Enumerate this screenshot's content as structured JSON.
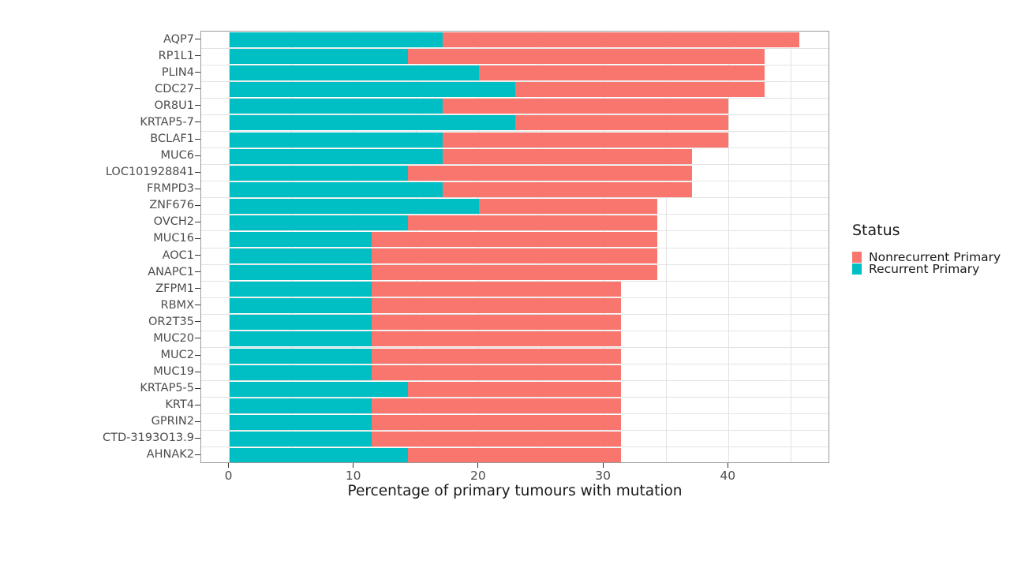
{
  "figure": {
    "background": "#FFFFFF"
  },
  "chart_data": {
    "type": "bar",
    "orientation": "horizontal",
    "stacked": true,
    "title": "",
    "xlabel": "Percentage of primary tumours with mutation",
    "ylabel": "",
    "xlim": [
      -2.3,
      48.1
    ],
    "x_ticks": [
      0,
      10,
      20,
      30,
      40
    ],
    "x_gridlines": [
      0,
      5,
      10,
      15,
      20,
      25,
      30,
      35,
      40,
      45
    ],
    "grid": "on",
    "legend_position": "right",
    "legend_title": "Status",
    "series": [
      {
        "name": "Recurrent Primary",
        "color": "#00BFC4"
      },
      {
        "name": "Nonrecurrent Primary",
        "color": "#F8766D"
      }
    ],
    "rows": [
      {
        "gene": "AQP7",
        "recurrent": 17.1,
        "nonrecurrent": 28.6,
        "total": 45.7
      },
      {
        "gene": "RP1L1",
        "recurrent": 14.3,
        "nonrecurrent": 28.6,
        "total": 42.9
      },
      {
        "gene": "PLIN4",
        "recurrent": 20.0,
        "nonrecurrent": 22.9,
        "total": 42.9
      },
      {
        "gene": "CDC27",
        "recurrent": 22.9,
        "nonrecurrent": 20.0,
        "total": 42.9
      },
      {
        "gene": "OR8U1",
        "recurrent": 17.1,
        "nonrecurrent": 22.9,
        "total": 40.0
      },
      {
        "gene": "KRTAP5-7",
        "recurrent": 22.9,
        "nonrecurrent": 17.1,
        "total": 40.0
      },
      {
        "gene": "BCLAF1",
        "recurrent": 17.1,
        "nonrecurrent": 22.9,
        "total": 40.0
      },
      {
        "gene": "MUC6",
        "recurrent": 17.1,
        "nonrecurrent": 20.0,
        "total": 37.1
      },
      {
        "gene": "LOC101928841",
        "recurrent": 14.3,
        "nonrecurrent": 22.8,
        "total": 37.1
      },
      {
        "gene": "FRMPD3",
        "recurrent": 17.1,
        "nonrecurrent": 20.0,
        "total": 37.1
      },
      {
        "gene": "ZNF676",
        "recurrent": 20.0,
        "nonrecurrent": 14.3,
        "total": 34.3
      },
      {
        "gene": "OVCH2",
        "recurrent": 14.3,
        "nonrecurrent": 20.0,
        "total": 34.3
      },
      {
        "gene": "MUC16",
        "recurrent": 11.4,
        "nonrecurrent": 22.9,
        "total": 34.3
      },
      {
        "gene": "AOC1",
        "recurrent": 11.4,
        "nonrecurrent": 22.9,
        "total": 34.3
      },
      {
        "gene": "ANAPC1",
        "recurrent": 11.4,
        "nonrecurrent": 22.9,
        "total": 34.3
      },
      {
        "gene": "ZFPM1",
        "recurrent": 11.4,
        "nonrecurrent": 20.0,
        "total": 31.4
      },
      {
        "gene": "RBMX",
        "recurrent": 11.4,
        "nonrecurrent": 20.0,
        "total": 31.4
      },
      {
        "gene": "OR2T35",
        "recurrent": 11.4,
        "nonrecurrent": 20.0,
        "total": 31.4
      },
      {
        "gene": "MUC20",
        "recurrent": 11.4,
        "nonrecurrent": 20.0,
        "total": 31.4
      },
      {
        "gene": "MUC2",
        "recurrent": 11.4,
        "nonrecurrent": 20.0,
        "total": 31.4
      },
      {
        "gene": "MUC19",
        "recurrent": 11.4,
        "nonrecurrent": 20.0,
        "total": 31.4
      },
      {
        "gene": "KRTAP5-5",
        "recurrent": 14.3,
        "nonrecurrent": 17.1,
        "total": 31.4
      },
      {
        "gene": "KRT4",
        "recurrent": 11.4,
        "nonrecurrent": 20.0,
        "total": 31.4
      },
      {
        "gene": "GPRIN2",
        "recurrent": 11.4,
        "nonrecurrent": 20.0,
        "total": 31.4
      },
      {
        "gene": "CTD-3193O13.9",
        "recurrent": 11.4,
        "nonrecurrent": 20.0,
        "total": 31.4
      },
      {
        "gene": "AHNAK2",
        "recurrent": 14.3,
        "nonrecurrent": 17.1,
        "total": 31.4
      }
    ]
  },
  "legend": {
    "title": "Status",
    "items": [
      {
        "label": "Nonrecurrent Primary",
        "color": "#F8766D"
      },
      {
        "label": "Recurrent Primary",
        "color": "#00BFC4"
      }
    ]
  },
  "colors": {
    "recurrent": "#00BFC4",
    "nonrecurrent": "#F8766D",
    "gridline": "#E3E3E3",
    "panel_border": "#9B9B9B",
    "tick_mark": "#333333",
    "axis_text": "#4D4D4D",
    "title_text": "#1A1A1A"
  }
}
